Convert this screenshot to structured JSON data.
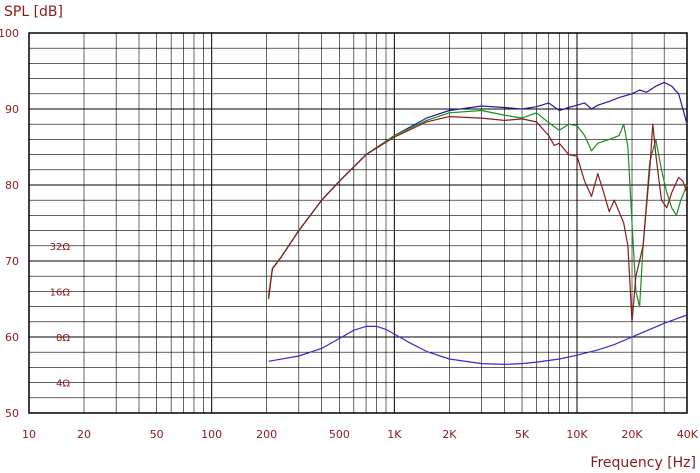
{
  "chart_data": {
    "type": "line",
    "ylabel": "SPL [dB]",
    "xlabel": "Frequency [Hz]",
    "xscale": "log",
    "xlim": [
      10,
      40000
    ],
    "ylim": [
      50,
      100
    ],
    "grid": true,
    "yticks": [
      {
        "value": 100,
        "label": "100"
      },
      {
        "value": 90,
        "label": "90"
      },
      {
        "value": 80,
        "label": "80"
      },
      {
        "value": 70,
        "label": "70"
      },
      {
        "value": 60,
        "label": "60"
      },
      {
        "value": 50,
        "label": "50"
      }
    ],
    "xticks": [
      {
        "value": 10,
        "label": "10"
      },
      {
        "value": 20,
        "label": "20"
      },
      {
        "value": 50,
        "label": "50"
      },
      {
        "value": 100,
        "label": "100"
      },
      {
        "value": 200,
        "label": "200"
      },
      {
        "value": 500,
        "label": "500"
      },
      {
        "value": 1000,
        "label": "1K"
      },
      {
        "value": 2000,
        "label": "2K"
      },
      {
        "value": 5000,
        "label": "5K"
      },
      {
        "value": 10000,
        "label": "10K"
      },
      {
        "value": 20000,
        "label": "20K"
      },
      {
        "value": 40000,
        "label": "40K"
      }
    ],
    "impedance_labels": [
      {
        "y": 72,
        "label": "32Ω"
      },
      {
        "y": 66,
        "label": "16Ω"
      },
      {
        "y": 60,
        "label": "8Ω"
      },
      {
        "y": 54,
        "label": "4Ω"
      }
    ],
    "series": [
      {
        "color": "#1f1f9e",
        "points": [
          [
            205,
            65.5
          ],
          [
            215,
            69
          ],
          [
            240,
            70.5
          ],
          [
            300,
            74
          ],
          [
            400,
            78
          ],
          [
            500,
            80.5
          ],
          [
            700,
            84
          ],
          [
            1000,
            86.5
          ],
          [
            1500,
            88.8
          ],
          [
            2000,
            89.8
          ],
          [
            3000,
            90.4
          ],
          [
            4000,
            90.2
          ],
          [
            5000,
            90
          ],
          [
            6000,
            90.3
          ],
          [
            7000,
            90.8
          ],
          [
            8000,
            89.8
          ],
          [
            9000,
            90.2
          ],
          [
            10000,
            90.5
          ],
          [
            11000,
            90.8
          ],
          [
            12000,
            90
          ],
          [
            13000,
            90.5
          ],
          [
            15000,
            91
          ],
          [
            17000,
            91.5
          ],
          [
            20000,
            92
          ],
          [
            22000,
            92.5
          ],
          [
            24000,
            92.2
          ],
          [
            27000,
            93
          ],
          [
            30000,
            93.5
          ],
          [
            33000,
            93
          ],
          [
            36000,
            92
          ],
          [
            38000,
            90
          ],
          [
            40000,
            88
          ]
        ]
      },
      {
        "color": "#1a8f1a",
        "points": [
          [
            205,
            65.3
          ],
          [
            215,
            69
          ],
          [
            240,
            70.5
          ],
          [
            300,
            74
          ],
          [
            400,
            78
          ],
          [
            500,
            80.5
          ],
          [
            700,
            84
          ],
          [
            1000,
            86.5
          ],
          [
            1500,
            88.5
          ],
          [
            2000,
            89.5
          ],
          [
            3000,
            89.8
          ],
          [
            4000,
            89.2
          ],
          [
            5000,
            88.8
          ],
          [
            6000,
            89.5
          ],
          [
            7000,
            88.2
          ],
          [
            8000,
            87.2
          ],
          [
            9000,
            88
          ],
          [
            10000,
            87.8
          ],
          [
            11000,
            86.5
          ],
          [
            12000,
            84.5
          ],
          [
            13000,
            85.5
          ],
          [
            15000,
            86
          ],
          [
            17000,
            86.5
          ],
          [
            18000,
            88
          ],
          [
            19000,
            85
          ],
          [
            20000,
            75
          ],
          [
            21000,
            66
          ],
          [
            22000,
            64
          ],
          [
            23000,
            72
          ],
          [
            25000,
            83
          ],
          [
            27000,
            86
          ],
          [
            29000,
            82
          ],
          [
            31000,
            79
          ],
          [
            33000,
            77
          ],
          [
            35000,
            76
          ],
          [
            37000,
            78
          ],
          [
            40000,
            80
          ]
        ]
      },
      {
        "color": "#8b1a1a",
        "points": [
          [
            205,
            65
          ],
          [
            215,
            69
          ],
          [
            240,
            70.5
          ],
          [
            300,
            74
          ],
          [
            400,
            78
          ],
          [
            500,
            80.5
          ],
          [
            700,
            84
          ],
          [
            1000,
            86.3
          ],
          [
            1500,
            88.3
          ],
          [
            2000,
            89
          ],
          [
            3000,
            88.8
          ],
          [
            4000,
            88.5
          ],
          [
            5000,
            88.7
          ],
          [
            6000,
            88.3
          ],
          [
            7000,
            86.5
          ],
          [
            7500,
            85.2
          ],
          [
            8000,
            85.5
          ],
          [
            9000,
            84
          ],
          [
            10000,
            83.8
          ],
          [
            11000,
            80.5
          ],
          [
            12000,
            78.5
          ],
          [
            13000,
            81.5
          ],
          [
            14000,
            79
          ],
          [
            15000,
            76.5
          ],
          [
            16000,
            78
          ],
          [
            18000,
            75
          ],
          [
            19000,
            72
          ],
          [
            20000,
            62
          ],
          [
            21000,
            68
          ],
          [
            23000,
            72
          ],
          [
            25000,
            82
          ],
          [
            26000,
            88
          ],
          [
            27000,
            84
          ],
          [
            29000,
            78
          ],
          [
            31000,
            77
          ],
          [
            33000,
            79
          ],
          [
            36000,
            81
          ],
          [
            38000,
            80.5
          ],
          [
            40000,
            79
          ]
        ]
      },
      {
        "color": "#2f2fc8",
        "points": [
          [
            205,
            56.8
          ],
          [
            300,
            57.5
          ],
          [
            400,
            58.5
          ],
          [
            500,
            59.8
          ],
          [
            600,
            60.9
          ],
          [
            700,
            61.4
          ],
          [
            800,
            61.4
          ],
          [
            900,
            61
          ],
          [
            1000,
            60.4
          ],
          [
            1200,
            59.3
          ],
          [
            1500,
            58.1
          ],
          [
            2000,
            57.1
          ],
          [
            3000,
            56.5
          ],
          [
            4000,
            56.4
          ],
          [
            5000,
            56.5
          ],
          [
            6000,
            56.7
          ],
          [
            8000,
            57.1
          ],
          [
            10000,
            57.6
          ],
          [
            13000,
            58.3
          ],
          [
            16000,
            59
          ],
          [
            20000,
            60
          ],
          [
            25000,
            61
          ],
          [
            30000,
            61.8
          ],
          [
            35000,
            62.4
          ],
          [
            40000,
            62.9
          ]
        ]
      }
    ]
  }
}
